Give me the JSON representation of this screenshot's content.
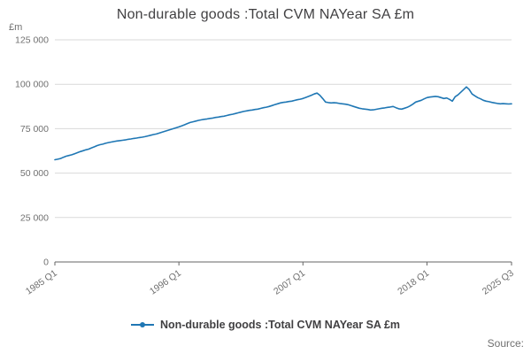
{
  "header": {
    "title": "Non-durable goods :Total CVM NAYear SA £m"
  },
  "legend": {
    "label": "Non-durable goods :Total CVM NAYear SA £m"
  },
  "source": {
    "label": "Source:"
  },
  "colors": {
    "line": "#1f77b4",
    "grid": "#d9d9d9",
    "axis": "#666666",
    "title_text": "#414042",
    "tick_text": "#707070"
  },
  "chart_data": {
    "type": "line",
    "title": "Non-durable goods :Total CVM NAYear SA £m",
    "xlabel": "",
    "ylabel": "£m",
    "ylim": [
      0,
      125000
    ],
    "grid": true,
    "legend_position": "bottom",
    "frequency": "quarterly",
    "x_start": "1985 Q1",
    "x_end": "2025 Q3",
    "y_ticks": [
      {
        "value": 0,
        "label": "0"
      },
      {
        "value": 25000,
        "label": "25 000"
      },
      {
        "value": 50000,
        "label": "50 000"
      },
      {
        "value": 75000,
        "label": "75 000"
      },
      {
        "value": 100000,
        "label": "100 000"
      },
      {
        "value": 125000,
        "label": "125 000"
      }
    ],
    "x_ticks": [
      {
        "index": 0,
        "label": "1985 Q1"
      },
      {
        "index": 44,
        "label": "1996 Q1"
      },
      {
        "index": 88,
        "label": "2007 Q1"
      },
      {
        "index": 132,
        "label": "2018 Q1"
      },
      {
        "index": 162,
        "label": "2025 Q3"
      }
    ],
    "series": [
      {
        "name": "Non-durable goods :Total CVM NAYear SA £m",
        "color": "#1f77b4",
        "values": [
          57500,
          57800,
          58200,
          58900,
          59500,
          59900,
          60300,
          60900,
          61500,
          62100,
          62600,
          63100,
          63500,
          64200,
          64800,
          65500,
          66000,
          66300,
          66800,
          67200,
          67500,
          67800,
          68100,
          68300,
          68500,
          68700,
          69000,
          69200,
          69500,
          69700,
          70000,
          70200,
          70500,
          70900,
          71300,
          71700,
          72000,
          72500,
          73000,
          73500,
          74000,
          74500,
          75000,
          75500,
          76000,
          76600,
          77200,
          77900,
          78500,
          78900,
          79300,
          79700,
          80000,
          80300,
          80500,
          80800,
          81000,
          81300,
          81500,
          81800,
          82000,
          82400,
          82800,
          83100,
          83500,
          83900,
          84300,
          84700,
          85000,
          85300,
          85500,
          85800,
          86000,
          86400,
          86800,
          87100,
          87500,
          88000,
          88500,
          89000,
          89500,
          89800,
          90000,
          90300,
          90500,
          90900,
          91300,
          91600,
          92000,
          92600,
          93200,
          93800,
          94500,
          95000,
          93800,
          92000,
          90000,
          89700,
          89500,
          89600,
          89500,
          89200,
          89000,
          88800,
          88500,
          88000,
          87500,
          87000,
          86500,
          86200,
          86000,
          85800,
          85500,
          85600,
          85900,
          86200,
          86500,
          86700,
          87000,
          87200,
          87500,
          86800,
          86200,
          86000,
          86500,
          87000,
          87800,
          88800,
          90000,
          90500,
          91000,
          91800,
          92500,
          92800,
          93000,
          93200,
          93000,
          92500,
          92000,
          92300,
          91500,
          90500,
          93000,
          94000,
          95500,
          97000,
          98500,
          97000,
          94500,
          93500,
          92500,
          91800,
          91000,
          90500,
          90200,
          89800,
          89500,
          89200,
          89000,
          89100,
          89000,
          88900,
          89000
        ]
      }
    ]
  }
}
